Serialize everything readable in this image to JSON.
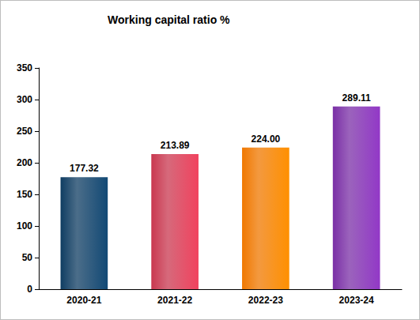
{
  "chart_data": {
    "type": "bar",
    "title": "Working capital ratio %",
    "categories": [
      "2020-21",
      "2021-22",
      "2022-23",
      "2023-24"
    ],
    "values": [
      177.32,
      213.89,
      224.0,
      289.11
    ],
    "value_labels": [
      "177.32",
      "213.89",
      "224.00",
      "289.11"
    ],
    "colors": [
      "#0f3d62",
      "#c9374f",
      "#f07800",
      "#7a2fa6"
    ],
    "ylim": [
      0,
      350
    ],
    "yticks": [
      0,
      50,
      100,
      150,
      200,
      250,
      300,
      350
    ],
    "grid": false,
    "data_labels": true
  }
}
